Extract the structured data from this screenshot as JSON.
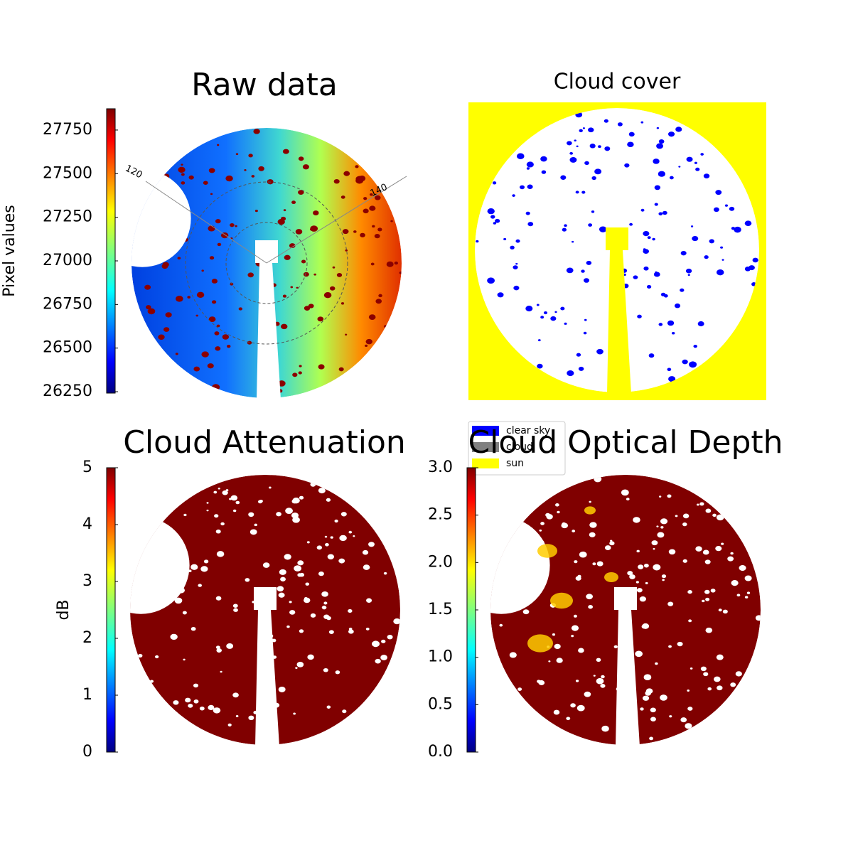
{
  "chart_data": [
    {
      "type": "heatmap",
      "title": "Raw data",
      "ylabel": "Pixel values",
      "colormap": "jet",
      "ylim": [
        26242,
        27872
      ],
      "yticks": [
        26250,
        26500,
        26750,
        27000,
        27250,
        27500,
        27750
      ],
      "annotations": [
        "120",
        "140"
      ]
    },
    {
      "type": "categorical",
      "title": "Cloud cover",
      "series": [
        {
          "name": "clear sky",
          "color": "#0000ff"
        },
        {
          "name": "cloud",
          "color": "#808080"
        },
        {
          "name": "sun",
          "color": "#ffff00"
        }
      ]
    },
    {
      "type": "heatmap",
      "title": "Cloud Attenuation",
      "ylabel": "dB",
      "colormap": "jet",
      "ylim": [
        0,
        5
      ],
      "yticks": [
        0,
        1,
        2,
        3,
        4,
        5
      ]
    },
    {
      "type": "heatmap",
      "title": "Cloud Optical Depth",
      "colormap": "jet",
      "ylim": [
        0,
        3
      ],
      "yticks": [
        {
          "value": 0,
          "label": "0.0"
        },
        0.5,
        {
          "value": 1,
          "label": "1.0"
        },
        1.5,
        {
          "value": 2,
          "label": "2.0"
        },
        2.5,
        {
          "value": 3,
          "label": "3.0"
        }
      ]
    }
  ]
}
